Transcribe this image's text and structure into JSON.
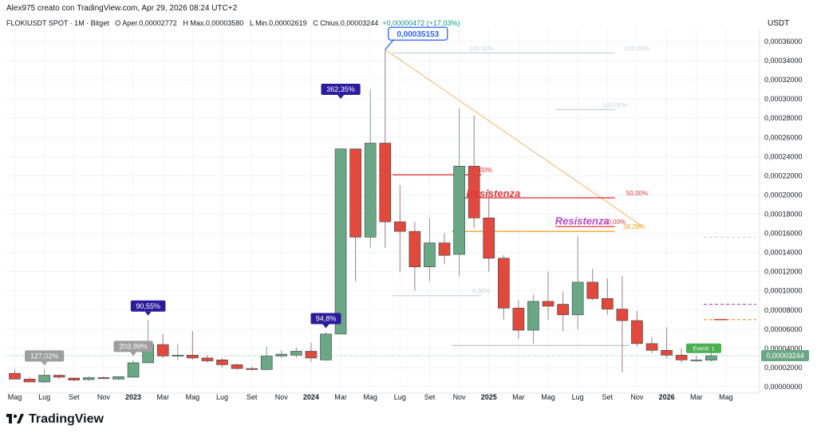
{
  "watermark": {
    "text": "Alex975 creato con TradingView.com, Apr 29, 2026 08:24 UTC+2"
  },
  "header": {
    "symbol": "FLOKIUSDT SPOT · 1M · Bitget",
    "open_label": "O",
    "open": "Aper.0,00002772",
    "high_label": "H",
    "high": "Max.0,00003580",
    "low_label": "L",
    "low": "Min.0,00002619",
    "close_label": "C",
    "close": "Chius.0,00003244",
    "change": "+0,00000472 (+17,03%)"
  },
  "axis_unit": "USDT",
  "brand": "TradingView",
  "colors": {
    "up": "#6aa784",
    "down": "#e0493c",
    "grid": "#f0f3fa",
    "text": "#131722",
    "fib_red": "#e0393e",
    "fib_orange": "#f39c12",
    "trend": "#f7b26a",
    "magenta": "#b548c6",
    "callout": "#2962ff"
  },
  "chart_data": {
    "type": "candlestick",
    "ylim": [
      0,
      0.00037
    ],
    "y_ticks": [
      "0,00000000",
      "0,00002000",
      "0,00004000",
      "0,00006000",
      "0,00008000",
      "0,00010000",
      "0,00012000",
      "0,00014000",
      "0,00016000",
      "0,00018000",
      "0,00020000",
      "0,00022000",
      "0,00024000",
      "0,00026000",
      "0,00028000",
      "0,00030000",
      "0,00032000",
      "0,00034000",
      "0,00036000"
    ],
    "x_ticks": [
      "Mag",
      "Lug",
      "Set",
      "Nov",
      "2023",
      "Mar",
      "Mag",
      "Lug",
      "Set",
      "Nov",
      "2024",
      "Mar",
      "Mag",
      "Lug",
      "Set",
      "Nov",
      "2025",
      "Mar",
      "Mag",
      "Lug",
      "Set",
      "Nov",
      "2026",
      "Mar",
      "Mag"
    ],
    "x_tick_months": [
      0,
      2,
      4,
      6,
      8,
      10,
      12,
      14,
      16,
      18,
      20,
      22,
      24,
      26,
      28,
      30,
      32,
      34,
      36,
      38,
      40,
      42,
      44,
      46,
      48
    ],
    "candles": [
      {
        "o": 1.4e-05,
        "h": 1.8e-05,
        "l": 8.5e-06,
        "c": 8e-06
      },
      {
        "o": 8e-06,
        "h": 1e-05,
        "l": 6e-06,
        "c": 5e-06
      },
      {
        "o": 5e-06,
        "h": 1.8e-05,
        "l": 4e-06,
        "c": 1.2e-05
      },
      {
        "o": 1.2e-05,
        "h": 1.3e-05,
        "l": 8e-06,
        "c": 1e-05
      },
      {
        "o": 9e-06,
        "h": 1e-05,
        "l": 6e-06,
        "c": 7e-06
      },
      {
        "o": 7.5e-06,
        "h": 1.1e-05,
        "l": 6e-06,
        "c": 9.5e-06
      },
      {
        "o": 9.5e-06,
        "h": 1.1e-05,
        "l": 8e-06,
        "c": 8.5e-06
      },
      {
        "o": 8e-06,
        "h": 1.1e-05,
        "l": 7e-06,
        "c": 1.05e-05
      },
      {
        "o": 1e-05,
        "h": 2.8e-05,
        "l": 1e-05,
        "c": 2.5e-05
      },
      {
        "o": 2.5e-05,
        "h": 7e-05,
        "l": 2.5e-05,
        "c": 4.4e-05
      },
      {
        "o": 4.4e-05,
        "h": 5.5e-05,
        "l": 3e-05,
        "c": 3.2e-05
      },
      {
        "o": 3.2e-05,
        "h": 4.5e-05,
        "l": 2.8e-05,
        "c": 3.3e-05
      },
      {
        "o": 3.3e-05,
        "h": 5.8e-05,
        "l": 2.8e-05,
        "c": 3e-05
      },
      {
        "o": 3e-05,
        "h": 3.3e-05,
        "l": 2.5e-05,
        "c": 2.7e-05
      },
      {
        "o": 2.8e-05,
        "h": 3e-05,
        "l": 2e-05,
        "c": 2.3e-05
      },
      {
        "o": 2.3e-05,
        "h": 2.4e-05,
        "l": 1.8e-05,
        "c": 1.9e-05
      },
      {
        "o": 1.9e-05,
        "h": 2.1e-05,
        "l": 1.7e-05,
        "c": 1.8e-05
      },
      {
        "o": 1.8e-05,
        "h": 4.2e-05,
        "l": 1.7e-05,
        "c": 3.2e-05
      },
      {
        "o": 3.2e-05,
        "h": 3.8e-05,
        "l": 3e-05,
        "c": 3.4e-05
      },
      {
        "o": 3.3e-05,
        "h": 4.1e-05,
        "l": 3e-05,
        "c": 3.7e-05
      },
      {
        "o": 3.7e-05,
        "h": 4.6e-05,
        "l": 2.6e-05,
        "c": 3e-05
      },
      {
        "o": 2.8e-05,
        "h": 5.7e-05,
        "l": 2.7e-05,
        "c": 5.5e-05
      },
      {
        "o": 5.5e-05,
        "h": 0.000248,
        "l": 5.5e-05,
        "c": 0.000248
      },
      {
        "o": 0.000248,
        "h": 0.000248,
        "l": 0.00011,
        "c": 0.000156
      },
      {
        "o": 0.000156,
        "h": 0.00031,
        "l": 0.000145,
        "c": 0.000254
      },
      {
        "o": 0.000254,
        "h": 0.0003515,
        "l": 0.000145,
        "c": 0.000172
      },
      {
        "o": 0.000172,
        "h": 0.00021,
        "l": 0.00012,
        "c": 0.000162
      },
      {
        "o": 0.000162,
        "h": 0.000172,
        "l": 0.0001,
        "c": 0.000125
      },
      {
        "o": 0.000125,
        "h": 0.000176,
        "l": 0.00011,
        "c": 0.00015
      },
      {
        "o": 0.00015,
        "h": 0.00016,
        "l": 0.000128,
        "c": 0.000137
      },
      {
        "o": 0.000138,
        "h": 0.00029,
        "l": 0.000115,
        "c": 0.00023
      },
      {
        "o": 0.00023,
        "h": 0.000283,
        "l": 0.000165,
        "c": 0.000176
      },
      {
        "o": 0.000176,
        "h": 0.000205,
        "l": 0.00012,
        "c": 0.000134
      },
      {
        "o": 0.000134,
        "h": 0.000137,
        "l": 7e-05,
        "c": 8.2e-05
      },
      {
        "o": 8.2e-05,
        "h": 9e-05,
        "l": 5e-05,
        "c": 5.9e-05
      },
      {
        "o": 5.9e-05,
        "h": 9.6e-05,
        "l": 4.5e-05,
        "c": 8.9e-05
      },
      {
        "o": 8.9e-05,
        "h": 0.00012,
        "l": 7e-05,
        "c": 8.4e-05
      },
      {
        "o": 8.6e-05,
        "h": 9.9e-05,
        "l": 5.8e-05,
        "c": 7.5e-05
      },
      {
        "o": 7.5e-05,
        "h": 0.000157,
        "l": 6e-05,
        "c": 0.000109
      },
      {
        "o": 0.000109,
        "h": 0.000123,
        "l": 9e-05,
        "c": 9.2e-05
      },
      {
        "o": 9.2e-05,
        "h": 0.000113,
        "l": 7.5e-05,
        "c": 8.1e-05
      },
      {
        "o": 8.1e-05,
        "h": 0.000115,
        "l": 1.5e-05,
        "c": 6.9e-05
      },
      {
        "o": 6.9e-05,
        "h": 7.9e-05,
        "l": 4.2e-05,
        "c": 4.5e-05
      },
      {
        "o": 4.5e-05,
        "h": 5.2e-05,
        "l": 3.5e-05,
        "c": 3.8e-05
      },
      {
        "o": 3.8e-05,
        "h": 6.2e-05,
        "l": 3e-05,
        "c": 3.3e-05
      },
      {
        "o": 3.3e-05,
        "h": 4e-05,
        "l": 2.5e-05,
        "c": 2.8e-05
      },
      {
        "o": 2.8e-05,
        "h": 3.3e-05,
        "l": 2.6e-05,
        "c": 2.8e-05
      },
      {
        "o": 2.77e-05,
        "h": 3.58e-05,
        "l": 2.62e-05,
        "c": 3.24e-05
      }
    ],
    "callouts": [
      {
        "text": "127,02%",
        "month": 2,
        "price": 1.8e-05,
        "color": "#9e9e9e"
      },
      {
        "text": "90,55%",
        "month": 9,
        "price": 7e-05,
        "color": "#2b1c9c"
      },
      {
        "text": "203,99%",
        "month": 8,
        "price": 2.8e-05,
        "color": "#9e9e9e"
      },
      {
        "text": "94,8%",
        "month": 21,
        "price": 5.7e-05,
        "color": "#2b1c9c"
      },
      {
        "text": "362,35%",
        "month": 22,
        "price": 0.000296,
        "color": "#2b1c9c"
      }
    ],
    "peak_label": {
      "text": "0,00035153",
      "month": 25,
      "price": 0.00035153
    },
    "annotations": [
      {
        "text": "Resistenza",
        "color": "#e0393e",
        "month": 32.3,
        "price": 0.000198
      },
      {
        "text": "Resistenza",
        "color": "#b548c6",
        "month": 38.3,
        "price": 0.000169
      }
    ],
    "fib_levels": [
      {
        "text": "100,00%",
        "color": "#cfd3da",
        "from": 25.5,
        "to": 40.5,
        "price": 0.000348,
        "label_at": 31.5
      },
      {
        "text": "100,00%",
        "color": "#cfd3da",
        "from": 40.5,
        "to": 40.5,
        "price": 0.000348,
        "label_at": 42.0
      },
      {
        "text": "100,00%",
        "color": "#cfd3da",
        "from": 36.5,
        "to": 40.5,
        "price": 0.000289,
        "label_at": 40.5
      },
      {
        "text": "50,00%",
        "color": "#e0393e",
        "from": 25.5,
        "to": 31.5,
        "price": 0.000221,
        "label_at": 31.5
      },
      {
        "text": "50,00%",
        "color": "#e0393e",
        "from": 30.0,
        "to": 40.5,
        "price": 0.000197,
        "label_at": 42.0
      },
      {
        "text": "50,00%",
        "color": "#e0393e",
        "from": 36.5,
        "to": 40.5,
        "price": 0.000167,
        "label_at": 40.5
      },
      {
        "text": "38,20%",
        "color": "#f39c12",
        "from": 29.5,
        "to": 40.5,
        "price": 0.000162,
        "label_at": 41.8
      },
      {
        "text": "0,00%",
        "color": "#cfd3da",
        "from": 25.5,
        "to": 31.5,
        "price": 9.5e-05,
        "label_at": 31.5
      }
    ],
    "last_price": "0,00003244",
    "events_label": "Eventi: 1"
  }
}
